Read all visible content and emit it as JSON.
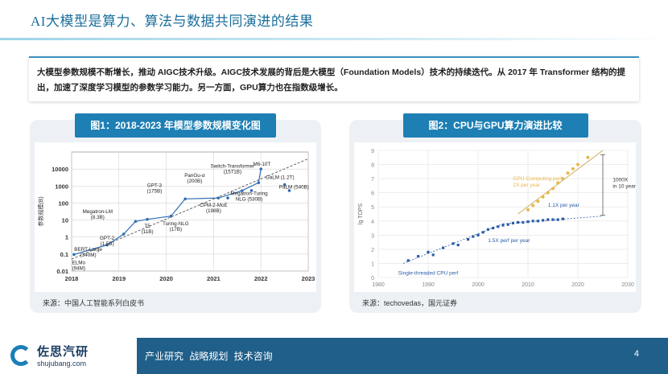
{
  "header": {
    "title": "AI大模型是算力、算法与数据共同演进的结果"
  },
  "intro": {
    "text": "大模型参数规模不断增长，推动 AIGC技术升级。AIGC技术发展的背后是大模型（Foundation Models）技术的持续迭代。从 2017 年 Transformer 结构的提出，加速了深度学习模型的参数学习能力。另一方面，GPU算力也在指数级增长。"
  },
  "figure1": {
    "title": "图1：2018-2023 年模型参数规模变化图",
    "source": "来源：中国人工智能系列白皮书"
  },
  "figure2": {
    "title": "图2：CPU与GPU算力演进比较",
    "source": "来源：techovedas，国元证券"
  },
  "footer": {
    "logo_name": "佐思汽研",
    "logo_url": "shujubang.com",
    "tags": "产业研究 战略规划 技术咨询",
    "page_number": "4"
  },
  "colors": {
    "accent": "#1d7fb4",
    "footer": "#1f5f8a",
    "title": "#1a6e9c"
  },
  "chart_data": [
    {
      "type": "line",
      "ylabel": "参数规模(B)",
      "xlim": [
        2018,
        2023
      ],
      "x_ticks": [
        "2018",
        "2019",
        "2020",
        "2021",
        "2022",
        "2023"
      ],
      "y_scale": "log",
      "ylim": [
        0.01,
        100000
      ],
      "y_ticks": [
        "0.01",
        "0.1",
        "1",
        "10",
        "100",
        "1000",
        "10000"
      ],
      "grid": true,
      "series": [
        {
          "values": [
            {
              "x": 2018.05,
              "y": 0.094
            },
            {
              "x": 2018.75,
              "y": 0.34
            },
            {
              "x": 2019.1,
              "y": 1.5
            },
            {
              "x": 2019.35,
              "y": 8.3
            },
            {
              "x": 2019.6,
              "y": 11
            },
            {
              "x": 2020.1,
              "y": 17
            },
            {
              "x": 2020.4,
              "y": 175
            },
            {
              "x": 2021.1,
              "y": 198
            },
            {
              "x": 2021.6,
              "y": 530
            },
            {
              "x": 2021.95,
              "y": 1571
            },
            {
              "x": 2022.0,
              "y": 10000
            }
          ]
        }
      ],
      "scatter_extra": [
        {
          "x": 2021.3,
          "y": 200
        },
        {
          "x": 2021.8,
          "y": 540
        },
        {
          "x": 2022.5,
          "y": 1200
        },
        {
          "x": 2022.6,
          "y": 540
        }
      ],
      "annotations": [
        {
          "text": "ELMo",
          "sub": "(94M)"
        },
        {
          "text": "BERT-Large",
          "sub": "(340M)"
        },
        {
          "text": "GPT-2",
          "sub": "(1.5B)"
        },
        {
          "text": "Megatron-LM",
          "sub": "(8.3B)"
        },
        {
          "text": "T5",
          "sub": "(11B)"
        },
        {
          "text": "Turing-NLG",
          "sub": "(17B)"
        },
        {
          "text": "GPT-3",
          "sub": "(175B)"
        },
        {
          "text": "PanGu-α",
          "sub": "(200B)"
        },
        {
          "text": "CPM-2-MoE",
          "sub": "(198B)"
        },
        {
          "text": "Switch-Transformer",
          "sub": "(1571B)"
        },
        {
          "text": "M6-10T",
          "sub": ""
        },
        {
          "text": "GaLM (1.2T)",
          "sub": ""
        },
        {
          "text": "PaLM (540B)",
          "sub": ""
        },
        {
          "text": "Megatron-Turing",
          "sub": "NLG (530B)"
        }
      ]
    },
    {
      "type": "scatter",
      "ylabel": "lg TOPS",
      "xlim": [
        1980,
        2030
      ],
      "x_ticks": [
        "1980",
        "1990",
        "2000",
        "2010",
        "2020",
        "2030"
      ],
      "ylim": [
        0,
        9
      ],
      "y_ticks": [
        "0",
        "1",
        "2",
        "3",
        "4",
        "5",
        "6",
        "7",
        "8",
        "9"
      ],
      "grid": true,
      "series": [
        {
          "name": "Single-threaded CPU perf",
          "color": "#2a5da8",
          "values": [
            {
              "x": 1986,
              "y": 1.2
            },
            {
              "x": 1988,
              "y": 1.5
            },
            {
              "x": 1990,
              "y": 1.8
            },
            {
              "x": 1991,
              "y": 1.6
            },
            {
              "x": 1993,
              "y": 2.1
            },
            {
              "x": 1995,
              "y": 2.4
            },
            {
              "x": 1996,
              "y": 2.3
            },
            {
              "x": 1998,
              "y": 2.7
            },
            {
              "x": 1999,
              "y": 2.9
            },
            {
              "x": 2000,
              "y": 3.0
            },
            {
              "x": 2001,
              "y": 3.2
            },
            {
              "x": 2002,
              "y": 3.4
            },
            {
              "x": 2003,
              "y": 3.5
            },
            {
              "x": 2004,
              "y": 3.6
            },
            {
              "x": 2005,
              "y": 3.7
            },
            {
              "x": 2006,
              "y": 3.75
            },
            {
              "x": 2007,
              "y": 3.85
            },
            {
              "x": 2008,
              "y": 3.9
            },
            {
              "x": 2009,
              "y": 3.9
            },
            {
              "x": 2010,
              "y": 3.95
            },
            {
              "x": 2011,
              "y": 4.0
            },
            {
              "x": 2012,
              "y": 4.0
            },
            {
              "x": 2013,
              "y": 4.05
            },
            {
              "x": 2014,
              "y": 4.1
            },
            {
              "x": 2015,
              "y": 4.1
            },
            {
              "x": 2016,
              "y": 4.1
            },
            {
              "x": 2017,
              "y": 4.15
            }
          ]
        },
        {
          "name": "GPU-Computing perf",
          "color": "#e8b84a",
          "values": [
            {
              "x": 2010,
              "y": 4.8
            },
            {
              "x": 2011,
              "y": 5.1
            },
            {
              "x": 2012,
              "y": 5.4
            },
            {
              "x": 2013,
              "y": 5.7
            },
            {
              "x": 2014,
              "y": 6.0
            },
            {
              "x": 2015,
              "y": 6.3
            },
            {
              "x": 2016,
              "y": 6.7
            },
            {
              "x": 2017,
              "y": 7.0
            },
            {
              "x": 2018,
              "y": 7.4
            },
            {
              "x": 2019,
              "y": 7.7
            },
            {
              "x": 2020,
              "y": 8.0
            },
            {
              "x": 2022,
              "y": 8.5
            }
          ]
        }
      ],
      "annotations": [
        {
          "text": "GPU-Computing perf",
          "sub": "2X per year"
        },
        {
          "text": "1.1X per year",
          "sub": ""
        },
        {
          "text": "1.5X perf per year",
          "sub": ""
        },
        {
          "text": "1000X",
          "sub": "in 10 years"
        }
      ]
    }
  ]
}
